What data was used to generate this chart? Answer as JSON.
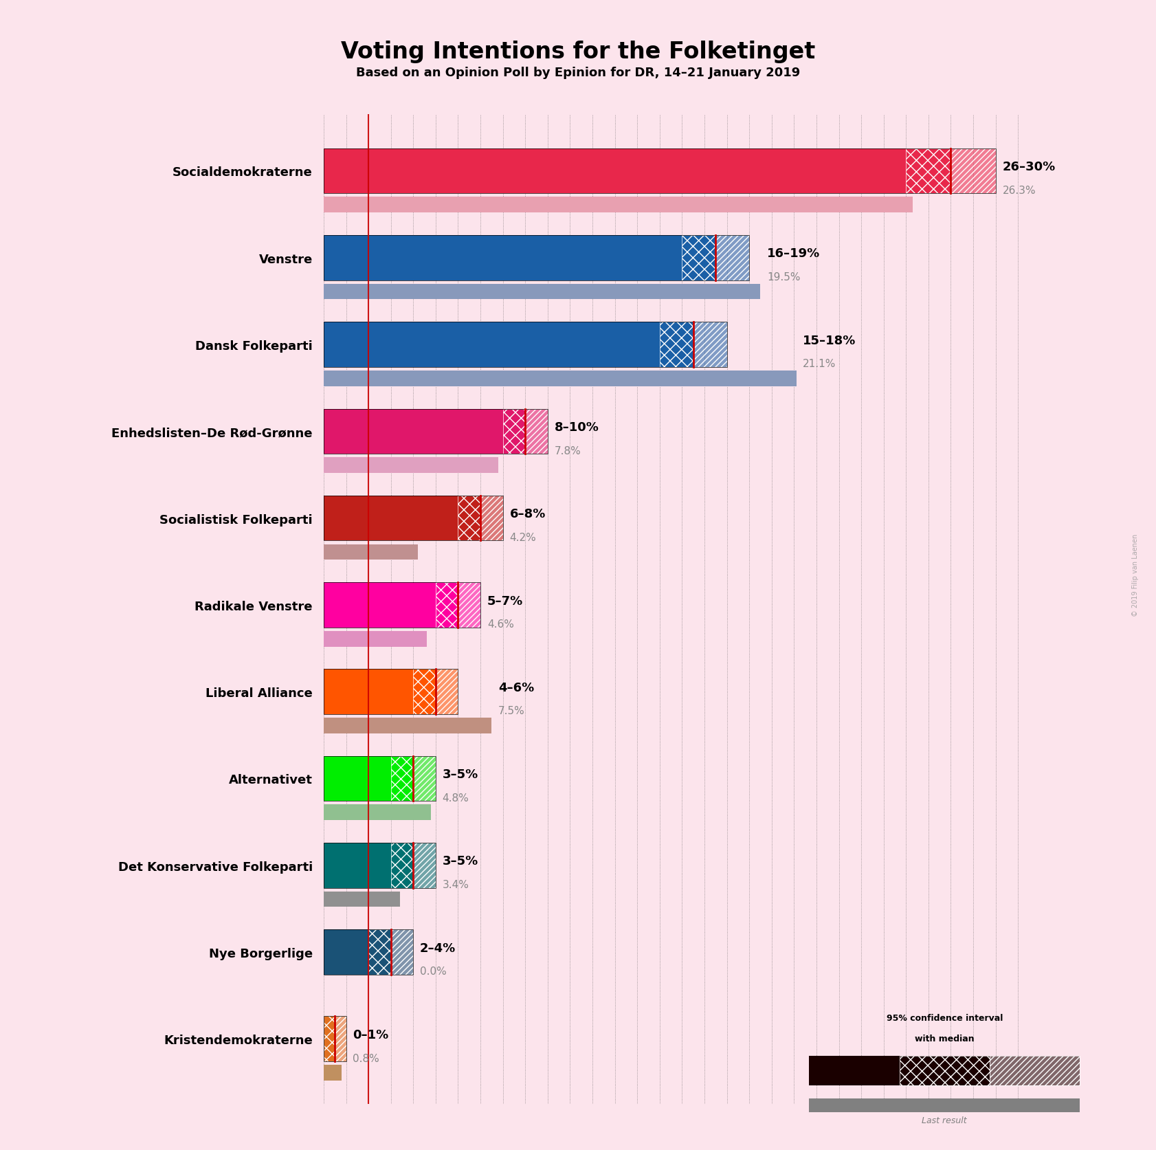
{
  "title": "Voting Intentions for the Folketinget",
  "subtitle": "Based on an Opinion Poll by Epinion for DR, 14–21 January 2019",
  "background_color": "#fce4ec",
  "parties": [
    "Socialdemokraterne",
    "Venstre",
    "Dansk Folkeparti",
    "Enhedslisten–De Rød-Grønne",
    "Socialistisk Folkeparti",
    "Radikale Venstre",
    "Liberal Alliance",
    "Alternativet",
    "Det Konservative Folkeparti",
    "Nye Borgerlige",
    "Kristendemokraterne"
  ],
  "ci_low": [
    26,
    16,
    15,
    8,
    6,
    5,
    4,
    3,
    3,
    2,
    0
  ],
  "ci_high": [
    30,
    19,
    18,
    10,
    8,
    7,
    6,
    5,
    5,
    4,
    1
  ],
  "median": [
    28,
    17.5,
    16.5,
    9,
    7,
    6,
    5,
    4,
    4,
    3,
    0.5
  ],
  "last_result": [
    26.3,
    19.5,
    21.1,
    7.8,
    4.2,
    4.6,
    7.5,
    4.8,
    3.4,
    0.0,
    0.8
  ],
  "label_text": [
    "26–30%",
    "16–19%",
    "15–18%",
    "8–10%",
    "6–8%",
    "5–7%",
    "4–6%",
    "3–5%",
    "3–5%",
    "2–4%",
    "0–1%"
  ],
  "colors": [
    "#e8274b",
    "#1a5fa6",
    "#1a5fa6",
    "#e0176a",
    "#c0201a",
    "#ff00a0",
    "#ff5500",
    "#00ee00",
    "#007070",
    "#1a5276",
    "#e07020"
  ],
  "last_result_colors": [
    "#e8a0b0",
    "#8899bb",
    "#8899bb",
    "#e0a0c0",
    "#c09090",
    "#e090c0",
    "#c09080",
    "#90c090",
    "#909090",
    "#7090a0",
    "#c09060"
  ],
  "x_max": 32,
  "watermark": "© 2019 Filip van Laenen",
  "legend_color": "#1a0000"
}
